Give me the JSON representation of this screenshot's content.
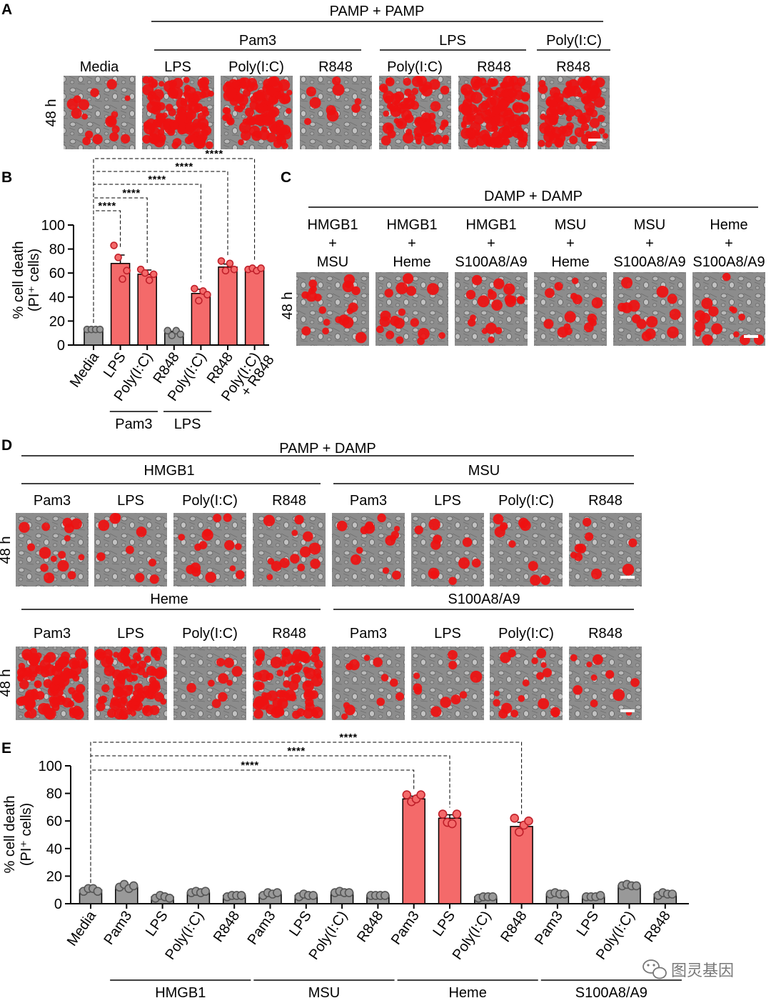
{
  "colors": {
    "pamp": "#f46a6a",
    "ctrl": "#999999",
    "dot_pamp": "#e63c3c",
    "dot_ctrl": "#7a7a7a",
    "pi_red": "#ee1111",
    "micro_bg": "#8c8c8c"
  },
  "panel_a": {
    "letter": "A",
    "header": "PAMP + PAMP",
    "groups": [
      "Pam3",
      "LPS",
      "Poly(I:C)"
    ],
    "tiles": [
      "Media",
      "LPS",
      "Poly(I:C)",
      "R848",
      "Poly(I:C)",
      "R848",
      "R848"
    ],
    "tile_density": [
      0.12,
      0.85,
      0.8,
      0.05,
      0.5,
      0.9,
      0.6
    ],
    "time": "48 h"
  },
  "panel_c": {
    "letter": "C",
    "header": "DAMP + DAMP",
    "tiles": [
      [
        "HMGB1",
        "+",
        "MSU"
      ],
      [
        "HMGB1",
        "+",
        "Heme"
      ],
      [
        "HMGB1",
        "+",
        "S100A8/A9"
      ],
      [
        "MSU",
        "+",
        "Heme"
      ],
      [
        "MSU",
        "+",
        "S100A8/A9"
      ],
      [
        "Heme",
        "+",
        "S100A8/A9"
      ]
    ],
    "tile_density": [
      0.14,
      0.12,
      0.13,
      0.1,
      0.08,
      0.1
    ],
    "time": "48 h"
  },
  "panel_d": {
    "letter": "D",
    "header": "PAMP + DAMP",
    "time": "48 h",
    "rows": [
      {
        "groups": [
          "HMGB1",
          "MSU"
        ],
        "tiles": [
          "Pam3",
          "LPS",
          "Poly(I:C)",
          "R848",
          "Pam3",
          "LPS",
          "Poly(I:C)",
          "R848"
        ],
        "tile_density": [
          0.1,
          0.05,
          0.1,
          0.08,
          0.08,
          0.06,
          0.06,
          0.05
        ]
      },
      {
        "groups": [
          "Heme",
          "S100A8/A9"
        ],
        "tiles": [
          "Pam3",
          "LPS",
          "Poly(I:C)",
          "R848",
          "Pam3",
          "LPS",
          "Poly(I:C)",
          "R848"
        ],
        "tile_density": [
          0.85,
          0.65,
          0.05,
          0.55,
          0.07,
          0.06,
          0.12,
          0.06
        ]
      }
    ]
  },
  "chart_data": [
    {
      "panel": "B",
      "type": "bar",
      "ylabel": "% cell death",
      "ylabel2": "(PI⁺ cells)",
      "ylim": [
        0,
        100
      ],
      "yticks": [
        0,
        20,
        40,
        60,
        80,
        100
      ],
      "categories": [
        "Media",
        "LPS",
        "Poly(I:C)",
        "R848",
        "Poly(I:C)",
        "R848",
        "Poly(I:C) + R848"
      ],
      "values": [
        13,
        68,
        59,
        10,
        43,
        65,
        63
      ],
      "errors": [
        0.8,
        7,
        3.5,
        1.5,
        3.5,
        2.5,
        1
      ],
      "replicates": [
        [
          13,
          13,
          13,
          13
        ],
        [
          83,
          73,
          55,
          62
        ],
        [
          63,
          60,
          54,
          59
        ],
        [
          12,
          8,
          12,
          9
        ],
        [
          47,
          37,
          45,
          42
        ],
        [
          70,
          62,
          68,
          63
        ],
        [
          63,
          64,
          62,
          64
        ]
      ],
      "highlight": [
        false,
        true,
        true,
        false,
        true,
        true,
        true
      ],
      "tick_label_lines": [
        [
          "Media"
        ],
        [
          "LPS"
        ],
        [
          "Poly(I:C)"
        ],
        [
          "R848"
        ],
        [
          "Poly(I:C)"
        ],
        [
          "R848"
        ],
        [
          "Poly(I:C)",
          "+ R848"
        ]
      ],
      "group_labels": [
        {
          "label": "Pam3",
          "from": 1,
          "to": 2
        },
        {
          "label": "LPS",
          "from": 3,
          "to": 4
        }
      ],
      "significance": [
        {
          "from": 0,
          "to": 1,
          "label": "****"
        },
        {
          "from": 0,
          "to": 2,
          "label": "****"
        },
        {
          "from": 0,
          "to": 4,
          "label": "****"
        },
        {
          "from": 0,
          "to": 5,
          "label": "****"
        },
        {
          "from": 0,
          "to": 6,
          "label": "****"
        }
      ]
    },
    {
      "panel": "E",
      "type": "bar",
      "ylabel": "% cell death",
      "ylabel2": "(PI⁺ cells)",
      "ylim": [
        0,
        100
      ],
      "yticks": [
        0,
        20,
        40,
        60,
        80,
        100
      ],
      "categories": [
        "Media",
        "Pam3",
        "LPS",
        "Poly(I:C)",
        "R848",
        "Pam3",
        "LPS",
        "Poly(I:C)",
        "R848",
        "Pam3",
        "LPS",
        "Poly(I:C)",
        "R848",
        "Pam3",
        "LPS",
        "Poly(I:C)",
        "R848"
      ],
      "values": [
        10,
        12,
        5,
        8,
        6,
        7,
        6,
        8,
        6,
        76,
        62,
        5,
        56,
        7,
        5,
        13,
        7
      ],
      "errors": [
        1,
        1.2,
        0.8,
        0.8,
        0.6,
        0.8,
        0.7,
        0.6,
        0.5,
        2,
        2.5,
        0.6,
        3,
        0.5,
        0.5,
        0.8,
        0.8
      ],
      "replicates": [
        [
          9,
          11,
          11,
          9
        ],
        [
          12,
          14,
          11,
          13
        ],
        [
          4,
          6,
          5,
          4
        ],
        [
          8,
          9,
          8,
          9
        ],
        [
          5,
          6,
          6,
          6
        ],
        [
          6,
          8,
          7,
          8
        ],
        [
          5,
          7,
          6,
          6
        ],
        [
          8,
          9,
          8,
          8
        ],
        [
          6,
          6,
          6,
          6
        ],
        [
          79,
          74,
          76,
          79
        ],
        [
          65,
          59,
          58,
          65
        ],
        [
          4,
          5,
          5,
          5
        ],
        [
          62,
          52,
          57,
          60
        ],
        [
          7,
          8,
          7,
          7
        ],
        [
          5,
          5,
          5,
          6
        ],
        [
          13,
          14,
          13,
          13
        ],
        [
          6,
          8,
          7,
          7
        ]
      ],
      "highlight": [
        false,
        false,
        false,
        false,
        false,
        false,
        false,
        false,
        false,
        true,
        true,
        false,
        true,
        false,
        false,
        false,
        false
      ],
      "group_labels": [
        {
          "label": "HMGB1",
          "from": 1,
          "to": 4
        },
        {
          "label": "MSU",
          "from": 5,
          "to": 8
        },
        {
          "label": "Heme",
          "from": 9,
          "to": 12
        },
        {
          "label": "S100A8/A9",
          "from": 13,
          "to": 16
        }
      ],
      "significance": [
        {
          "from": 0,
          "to": 9,
          "label": "****"
        },
        {
          "from": 0,
          "to": 10,
          "label": "****"
        },
        {
          "from": 0,
          "to": 12,
          "label": "****"
        }
      ]
    }
  ],
  "watermark": {
    "icon": "wechat-icon",
    "text": "图灵基因"
  }
}
